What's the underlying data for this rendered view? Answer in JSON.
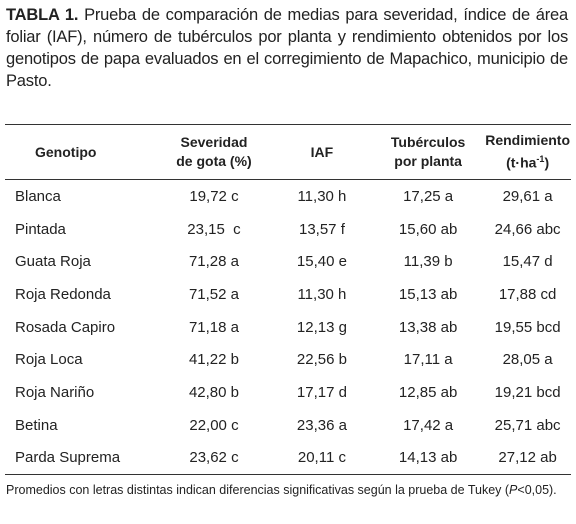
{
  "caption": {
    "label": "TABLA 1.",
    "text": "Prueba de comparación de medias para severidad, índice de área foliar (IAF), número de tubérculos por planta y rendimiento obtenidos por los genotipos de papa evaluados en el corregimiento de Mapachico, municipio de Pasto."
  },
  "table": {
    "headers": [
      [
        "Genotipo"
      ],
      [
        "Severidad",
        "de gota (%)"
      ],
      [
        "IAF"
      ],
      [
        "Tubérculos",
        "por planta"
      ],
      [
        "Rendimiento",
        "(t·ha",
        "-1",
        ")"
      ]
    ],
    "rows": [
      [
        "Blanca",
        "19,72 c",
        "11,30 h",
        "17,25 a",
        "29,61 a"
      ],
      [
        "Pintada",
        "23,15  c",
        "13,57 f",
        "15,60 ab",
        "24,66 abc"
      ],
      [
        "Guata Roja",
        "71,28 a",
        "15,40 e",
        "11,39 b",
        "15,47 d"
      ],
      [
        "Roja Redonda",
        "71,52 a",
        "11,30 h",
        "15,13 ab",
        "17,88 cd"
      ],
      [
        "Rosada Capiro",
        "71,18 a",
        "12,13 g",
        "13,38 ab",
        "19,55 bcd"
      ],
      [
        "Roja Loca",
        "41,22 b",
        "22,56 b",
        "17,11 a",
        "28,05 a"
      ],
      [
        "Roja Nariño",
        "42,80 b",
        "17,17 d",
        "12,85 ab",
        "19,21 bcd"
      ],
      [
        "Betina",
        "22,00 c",
        "23,36 a",
        "17,42 a",
        "25,71 abc"
      ],
      [
        "Parda Suprema",
        "23,62 c",
        "20,11 c",
        "14,13 ab",
        "27,12 ab"
      ]
    ]
  },
  "footnote": [
    "Promedios con letras distintas indican diferencias significativas según la prueba de Tukey (",
    "P",
    "<0,05)."
  ]
}
